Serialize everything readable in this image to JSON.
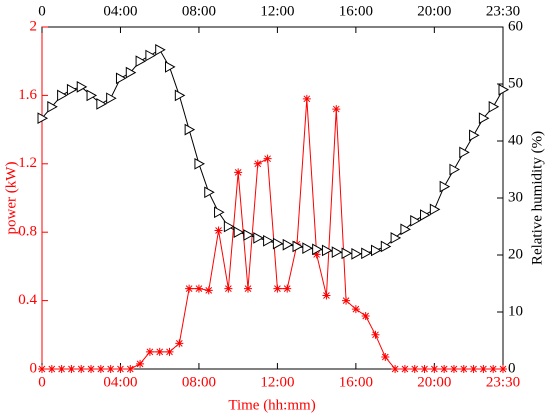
{
  "chart_data": {
    "type": "line",
    "x_label": "Time (hh:mm)",
    "y_label": "power (kW)",
    "y2_label": "Relative humidity (%)",
    "x": [
      0,
      0.5,
      1,
      1.5,
      2,
      2.5,
      3,
      3.5,
      4,
      4.5,
      5,
      5.5,
      6,
      6.5,
      7,
      7.5,
      8,
      8.5,
      9,
      9.5,
      10,
      10.5,
      11,
      11.5,
      12,
      12.5,
      13,
      13.5,
      14,
      14.5,
      15,
      15.5,
      16,
      16.5,
      17,
      17.5,
      18,
      18.5,
      19,
      19.5,
      20,
      20.5,
      21,
      21.5,
      22,
      22.5,
      23,
      23.5
    ],
    "xlim": [
      0,
      23.5
    ],
    "xticks": [
      0,
      {
        "value": 4,
        "label": "04:00"
      },
      {
        "value": 8,
        "label": "08:00"
      },
      {
        "value": 12,
        "label": "12:00"
      },
      {
        "value": 16,
        "label": "16:00"
      },
      {
        "value": 20,
        "label": "20:00"
      },
      {
        "value": 23.5,
        "label": "23:30"
      }
    ],
    "ylim": [
      0,
      2
    ],
    "yticks": [
      0,
      0.4,
      0.8,
      1.2,
      1.6,
      2
    ],
    "y2lim": [
      0,
      60
    ],
    "y2ticks": [
      0,
      10,
      20,
      30,
      40,
      50,
      60
    ],
    "series": [
      {
        "name": "power",
        "color": "#ff0000",
        "axis": "y",
        "values": [
          0,
          0,
          0,
          0,
          0,
          0,
          0,
          0,
          0,
          0,
          0.03,
          0.1,
          0.1,
          0.1,
          0.15,
          0.47,
          0.47,
          0.46,
          0.81,
          0.47,
          1.15,
          0.47,
          1.2,
          1.23,
          0.47,
          0.47,
          0.73,
          1.58,
          0.67,
          0.43,
          1.52,
          0.4,
          0.35,
          0.31,
          0.2,
          0.07,
          0,
          0,
          0,
          0,
          0,
          0,
          0,
          0,
          0,
          0,
          0,
          0
        ]
      },
      {
        "name": "Relative humidity",
        "color": "#000000",
        "axis": "y2",
        "values": [
          44,
          46,
          48,
          49,
          49.5,
          48,
          46.5,
          47.5,
          51,
          52,
          54,
          55,
          56,
          53,
          48,
          42,
          36,
          31,
          27.5,
          25,
          24,
          23.5,
          23,
          22.5,
          22,
          21.8,
          21.5,
          21.2,
          21,
          20.8,
          20.5,
          20.3,
          20.2,
          20.3,
          20.8,
          21.5,
          23,
          24.5,
          26,
          27,
          28,
          32,
          35,
          38,
          41,
          44,
          46,
          49
        ]
      }
    ]
  }
}
